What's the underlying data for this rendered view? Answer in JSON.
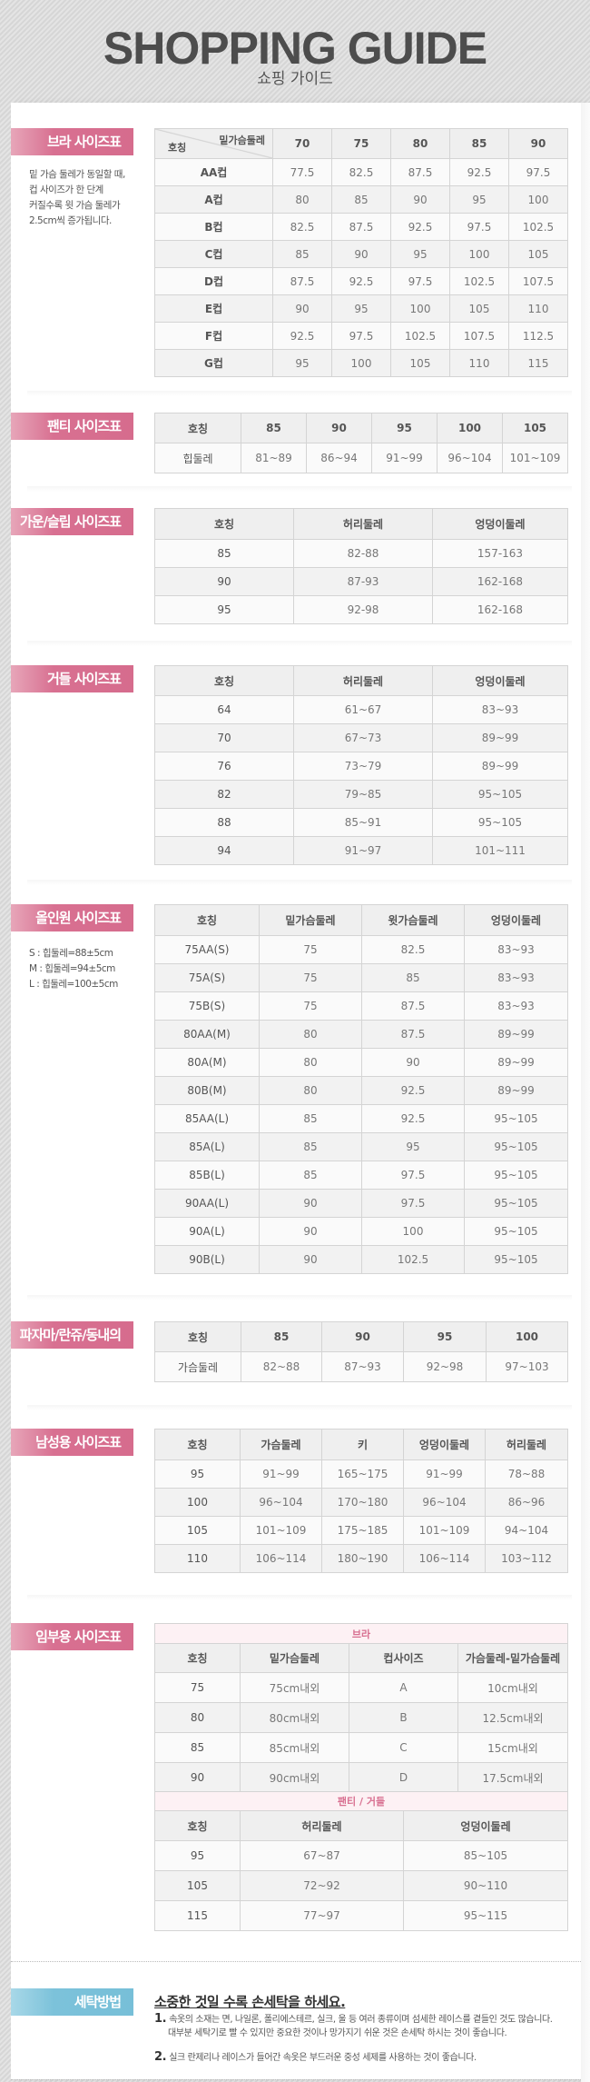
{
  "header": {
    "title": "SHOPPING GUIDE",
    "subtitle": "쇼핑 가이드"
  },
  "bra": {
    "label": "브라 사이즈표",
    "notes": [
      "밑 가슴 둘레가 동일할 때,",
      "컵 사이즈가 한 단계",
      "커질수록 윗 가슴 둘레가",
      "2.5cm씩 증가됩니다."
    ],
    "corner_top": "밑가슴둘레",
    "corner_bottom": "호칭",
    "headers": [
      "70",
      "75",
      "80",
      "85",
      "90"
    ],
    "rows": [
      [
        "AA컵",
        "77.5",
        "82.5",
        "87.5",
        "92.5",
        "97.5"
      ],
      [
        "A컵",
        "80",
        "85",
        "90",
        "95",
        "100"
      ],
      [
        "B컵",
        "82.5",
        "87.5",
        "92.5",
        "97.5",
        "102.5"
      ],
      [
        "C컵",
        "85",
        "90",
        "95",
        "100",
        "105"
      ],
      [
        "D컵",
        "87.5",
        "92.5",
        "97.5",
        "102.5",
        "107.5"
      ],
      [
        "E컵",
        "90",
        "95",
        "100",
        "105",
        "110"
      ],
      [
        "F컵",
        "92.5",
        "97.5",
        "102.5",
        "107.5",
        "112.5"
      ],
      [
        "G컵",
        "95",
        "100",
        "105",
        "110",
        "115"
      ]
    ]
  },
  "panty": {
    "label": "팬티 사이즈표",
    "headers": [
      "호칭",
      "85",
      "90",
      "95",
      "100",
      "105"
    ],
    "rows": [
      [
        "힙둘레",
        "81~89",
        "86~94",
        "91~99",
        "96~104",
        "101~109"
      ]
    ]
  },
  "gown": {
    "label": "가운/슬립 사이즈표",
    "headers": [
      "호칭",
      "허리둘레",
      "엉덩이둘레"
    ],
    "rows": [
      [
        "85",
        "82-88",
        "157-163"
      ],
      [
        "90",
        "87-93",
        "162-168"
      ],
      [
        "95",
        "92-98",
        "162-168"
      ]
    ]
  },
  "girdle": {
    "label": "거들 사이즈표",
    "headers": [
      "호칭",
      "허리둘레",
      "엉덩이둘레"
    ],
    "rows": [
      [
        "64",
        "61~67",
        "83~93"
      ],
      [
        "70",
        "67~73",
        "89~99"
      ],
      [
        "76",
        "73~79",
        "89~99"
      ],
      [
        "82",
        "79~85",
        "95~105"
      ],
      [
        "88",
        "85~91",
        "95~105"
      ],
      [
        "94",
        "91~97",
        "101~111"
      ]
    ]
  },
  "allinone": {
    "label": "올인원 사이즈표",
    "notes": [
      "S : 힙둘레=88±5cm",
      "M : 힙둘레=94±5cm",
      "L : 힙둘레=100±5cm"
    ],
    "headers": [
      "호칭",
      "밑가슴둘레",
      "윗가슴둘레",
      "엉덩이둘레"
    ],
    "rows": [
      [
        "75AA(S)",
        "75",
        "82.5",
        "83~93"
      ],
      [
        "75A(S)",
        "75",
        "85",
        "83~93"
      ],
      [
        "75B(S)",
        "75",
        "87.5",
        "83~93"
      ],
      [
        "80AA(M)",
        "80",
        "87.5",
        "89~99"
      ],
      [
        "80A(M)",
        "80",
        "90",
        "89~99"
      ],
      [
        "80B(M)",
        "80",
        "92.5",
        "89~99"
      ],
      [
        "85AA(L)",
        "85",
        "92.5",
        "95~105"
      ],
      [
        "85A(L)",
        "85",
        "95",
        "95~105"
      ],
      [
        "85B(L)",
        "85",
        "97.5",
        "95~105"
      ],
      [
        "90AA(L)",
        "90",
        "97.5",
        "95~105"
      ],
      [
        "90A(L)",
        "90",
        "100",
        "95~105"
      ],
      [
        "90B(L)",
        "90",
        "102.5",
        "95~105"
      ]
    ]
  },
  "pajama": {
    "label": "파자마/란쥬/동내의",
    "headers": [
      "호칭",
      "85",
      "90",
      "95",
      "100"
    ],
    "rows": [
      [
        "가슴둘레",
        "82~88",
        "87~93",
        "92~98",
        "97~103"
      ]
    ]
  },
  "men": {
    "label": "남성용 사이즈표",
    "headers": [
      "호칭",
      "가슴둘레",
      "키",
      "엉덩이둘레",
      "허리둘레"
    ],
    "rows": [
      [
        "95",
        "91~99",
        "165~175",
        "91~99",
        "78~88"
      ],
      [
        "100",
        "96~104",
        "170~180",
        "96~104",
        "86~96"
      ],
      [
        "105",
        "101~109",
        "175~185",
        "101~109",
        "94~104"
      ],
      [
        "110",
        "106~114",
        "180~190",
        "106~114",
        "103~112"
      ]
    ]
  },
  "maternity": {
    "label": "임부용 사이즈표",
    "bra": {
      "caption": "브라",
      "headers": [
        "호칭",
        "밑가슴둘레",
        "컵사이즈",
        "가슴둘레-밑가슴둘레"
      ],
      "rows": [
        [
          "75",
          "75cm내외",
          "A",
          "10cm내외"
        ],
        [
          "80",
          "80cm내외",
          "B",
          "12.5cm내외"
        ],
        [
          "85",
          "85cm내외",
          "C",
          "15cm내외"
        ],
        [
          "90",
          "90cm내외",
          "D",
          "17.5cm내외"
        ]
      ]
    },
    "panty": {
      "caption": "팬티 / 거들",
      "headers": [
        "호칭",
        "허리둘레",
        "엉덩이둘레"
      ],
      "rows": [
        [
          "95",
          "67~87",
          "85~105"
        ],
        [
          "105",
          "72~92",
          "90~110"
        ],
        [
          "115",
          "77~97",
          "95~115"
        ]
      ]
    }
  },
  "washing": {
    "label": "세탁방법",
    "title": "소중한 것일 수록 손세탁을 하세요.",
    "items": [
      {
        "num": "1.",
        "lines": [
          "속옷의 소재는 면, 나일론, 폴리에스테르, 실크, 울 등 여러 종류이며 섬세한 레이스를 곁들인 것도 많습니다.",
          "대부분 세탁기로 빨 수 있지만 중요한 것이나 망가지기 쉬운 것은 손세탁 하시는 것이 좋습니다."
        ]
      },
      {
        "num": "2.",
        "lines": [
          "실크 란제리나 레이스가 들어간 속옷은 부드러운 중성 세제를 사용하는 것이 좋습니다."
        ]
      }
    ]
  },
  "colors": {
    "label_pink": "#d87091",
    "label_blue": "#7cc2da",
    "caption_pink": "#d87091"
  }
}
